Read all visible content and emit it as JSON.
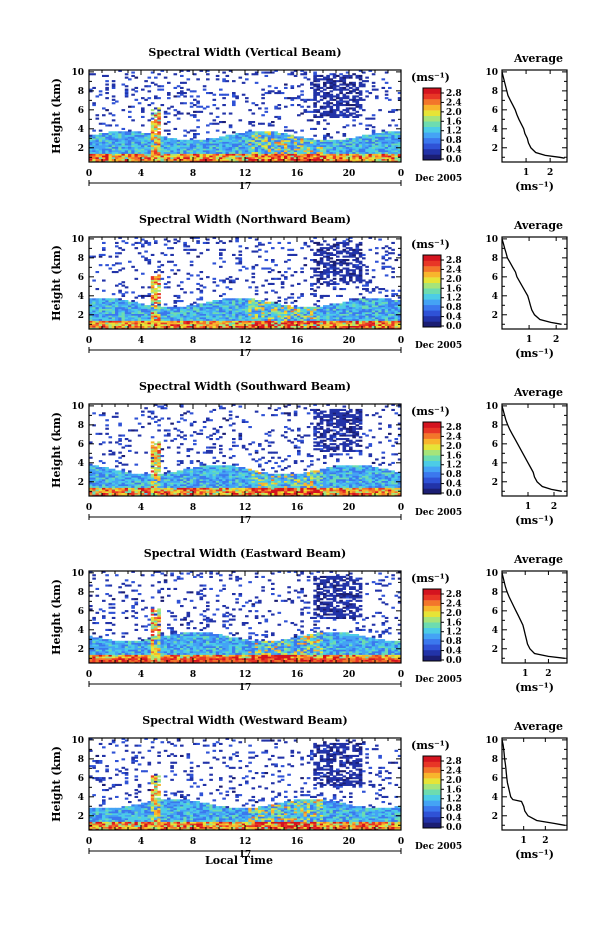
{
  "colors": {
    "colorbar": [
      "#1b1e73",
      "#2233a8",
      "#2f52d6",
      "#3b78ee",
      "#44a3f5",
      "#4ccce6",
      "#6ddcb0",
      "#a6e47a",
      "#e6e437",
      "#f8b52c",
      "#f3762a",
      "#e83626",
      "#d4141f"
    ],
    "background": "#ffffff",
    "axis": "#000000"
  },
  "xlabel": "Local Time",
  "chart_data": [
    {
      "type": "heatmap",
      "title": "Spectral Width (Vertical Beam)",
      "ylabel": "Height (km)",
      "xticks": [
        "0",
        "4",
        "8",
        "12",
        "16",
        "20",
        "0"
      ],
      "day_label": "17",
      "date_label": "Dec 2005",
      "yticks": [
        "2",
        "4",
        "6",
        "8",
        "10"
      ],
      "xlim": [
        0,
        24
      ],
      "ylim": [
        0.5,
        10.2
      ],
      "colorbar": {
        "unit": "(ms⁻¹)",
        "ticks": [
          "0.0",
          "0.4",
          "0.8",
          "1.2",
          "1.6",
          "2.0",
          "2.4",
          "2.8"
        ]
      },
      "avg_profile": {
        "title": "Average",
        "xlabel": "(ms⁻¹)",
        "xticks": [
          "1",
          "2"
        ],
        "xlim": [
          0,
          2.7
        ],
        "yticks": [
          "2",
          "4",
          "6",
          "8",
          "10"
        ],
        "ylim": [
          0.5,
          10.2
        ],
        "points": [
          [
            0.0,
            10.0
          ],
          [
            0.05,
            9.5
          ],
          [
            0.1,
            9.0
          ],
          [
            0.15,
            8.5
          ],
          [
            0.2,
            8.0
          ],
          [
            0.25,
            7.5
          ],
          [
            0.35,
            7.0
          ],
          [
            0.45,
            6.5
          ],
          [
            0.55,
            6.0
          ],
          [
            0.62,
            5.5
          ],
          [
            0.7,
            5.0
          ],
          [
            0.8,
            4.5
          ],
          [
            0.9,
            4.0
          ],
          [
            0.95,
            3.5
          ],
          [
            1.05,
            3.0
          ],
          [
            1.1,
            2.5
          ],
          [
            1.2,
            2.0
          ],
          [
            1.4,
            1.5
          ],
          [
            1.8,
            1.2
          ],
          [
            2.4,
            1.0
          ],
          [
            2.6,
            0.9
          ]
        ]
      }
    },
    {
      "type": "heatmap",
      "title": "Spectral Width (Northward Beam)",
      "ylabel": "Height (km)",
      "xticks": [
        "0",
        "4",
        "8",
        "12",
        "16",
        "20",
        "0"
      ],
      "day_label": "17",
      "date_label": "Dec 2005",
      "yticks": [
        "2",
        "4",
        "6",
        "8",
        "10"
      ],
      "xlim": [
        0,
        24
      ],
      "ylim": [
        0.5,
        10.2
      ],
      "colorbar": {
        "unit": "(ms⁻¹)",
        "ticks": [
          "0.0",
          "0.4",
          "0.8",
          "1.2",
          "1.6",
          "2.0",
          "2.4",
          "2.8"
        ]
      },
      "avg_profile": {
        "title": "Average",
        "xlabel": "(ms⁻¹)",
        "xticks": [
          "1",
          "2"
        ],
        "xlim": [
          0,
          2.4
        ],
        "yticks": [
          "2",
          "4",
          "6",
          "8",
          "10"
        ],
        "ylim": [
          0.5,
          10.2
        ],
        "points": [
          [
            0.0,
            10.0
          ],
          [
            0.05,
            9.5
          ],
          [
            0.1,
            9.0
          ],
          [
            0.15,
            8.5
          ],
          [
            0.2,
            8.0
          ],
          [
            0.3,
            7.5
          ],
          [
            0.4,
            7.0
          ],
          [
            0.5,
            6.5
          ],
          [
            0.55,
            6.0
          ],
          [
            0.65,
            5.5
          ],
          [
            0.75,
            5.0
          ],
          [
            0.85,
            4.5
          ],
          [
            0.95,
            4.0
          ],
          [
            1.0,
            3.5
          ],
          [
            1.05,
            3.0
          ],
          [
            1.1,
            2.5
          ],
          [
            1.2,
            2.0
          ],
          [
            1.4,
            1.5
          ],
          [
            1.8,
            1.2
          ],
          [
            2.2,
            1.0
          ]
        ]
      }
    },
    {
      "type": "heatmap",
      "title": "Spectral Width (Southward Beam)",
      "ylabel": "Height (km)",
      "xticks": [
        "0",
        "4",
        "8",
        "12",
        "16",
        "20",
        "0"
      ],
      "day_label": "17",
      "date_label": "Dec 2005",
      "yticks": [
        "2",
        "4",
        "6",
        "8",
        "10"
      ],
      "xlim": [
        0,
        24
      ],
      "ylim": [
        0.5,
        10.2
      ],
      "colorbar": {
        "unit": "(ms⁻¹)",
        "ticks": [
          "0.0",
          "0.4",
          "0.8",
          "1.2",
          "1.6",
          "2.0",
          "2.4",
          "2.8"
        ]
      },
      "avg_profile": {
        "title": "Average",
        "xlabel": "(ms⁻¹)",
        "xticks": [
          "1",
          "2"
        ],
        "xlim": [
          0,
          2.5
        ],
        "yticks": [
          "2",
          "4",
          "6",
          "8",
          "10"
        ],
        "ylim": [
          0.5,
          10.2
        ],
        "points": [
          [
            0.0,
            10.0
          ],
          [
            0.05,
            9.5
          ],
          [
            0.1,
            9.0
          ],
          [
            0.15,
            8.5
          ],
          [
            0.22,
            8.0
          ],
          [
            0.3,
            7.5
          ],
          [
            0.4,
            7.0
          ],
          [
            0.5,
            6.5
          ],
          [
            0.6,
            6.0
          ],
          [
            0.7,
            5.5
          ],
          [
            0.8,
            5.0
          ],
          [
            0.9,
            4.5
          ],
          [
            1.0,
            4.0
          ],
          [
            1.1,
            3.5
          ],
          [
            1.2,
            3.0
          ],
          [
            1.25,
            2.5
          ],
          [
            1.35,
            2.0
          ],
          [
            1.55,
            1.5
          ],
          [
            1.9,
            1.2
          ],
          [
            2.3,
            1.0
          ]
        ]
      }
    },
    {
      "type": "heatmap",
      "title": "Spectral Width (Eastward Beam)",
      "ylabel": "Height (km)",
      "xticks": [
        "0",
        "4",
        "8",
        "12",
        "16",
        "20",
        "0"
      ],
      "day_label": "17",
      "date_label": "Dec 2005",
      "yticks": [
        "2",
        "4",
        "6",
        "8",
        "10"
      ],
      "xlim": [
        0,
        24
      ],
      "ylim": [
        0.5,
        10.2
      ],
      "colorbar": {
        "unit": "(ms⁻¹)",
        "ticks": [
          "0.0",
          "0.4",
          "0.8",
          "1.2",
          "1.6",
          "2.0",
          "2.4",
          "2.8"
        ]
      },
      "avg_profile": {
        "title": "Average",
        "xlabel": "(ms⁻¹)",
        "xticks": [
          "1",
          "2"
        ],
        "xlim": [
          0,
          2.8
        ],
        "yticks": [
          "2",
          "4",
          "6",
          "8",
          "10"
        ],
        "ylim": [
          0.5,
          10.2
        ],
        "points": [
          [
            0.0,
            10.0
          ],
          [
            0.05,
            9.5
          ],
          [
            0.1,
            9.0
          ],
          [
            0.15,
            8.5
          ],
          [
            0.22,
            8.0
          ],
          [
            0.3,
            7.5
          ],
          [
            0.4,
            7.0
          ],
          [
            0.5,
            6.5
          ],
          [
            0.6,
            6.0
          ],
          [
            0.7,
            5.5
          ],
          [
            0.8,
            5.0
          ],
          [
            0.9,
            4.5
          ],
          [
            0.95,
            4.0
          ],
          [
            1.0,
            3.5
          ],
          [
            1.05,
            3.0
          ],
          [
            1.1,
            2.5
          ],
          [
            1.2,
            2.0
          ],
          [
            1.4,
            1.5
          ],
          [
            2.0,
            1.2
          ],
          [
            2.7,
            1.0
          ]
        ]
      }
    },
    {
      "type": "heatmap",
      "title": "Spectral Width (Westward Beam)",
      "ylabel": "Height (km)",
      "xticks": [
        "0",
        "4",
        "8",
        "12",
        "16",
        "20",
        "0"
      ],
      "day_label": "17",
      "date_label": "Dec 2005",
      "yticks": [
        "2",
        "4",
        "6",
        "8",
        "10"
      ],
      "xlim": [
        0,
        24
      ],
      "ylim": [
        0.5,
        10.2
      ],
      "colorbar": {
        "unit": "(ms⁻¹)",
        "ticks": [
          "0.0",
          "0.4",
          "0.8",
          "1.2",
          "1.6",
          "2.0",
          "2.4",
          "2.8"
        ]
      },
      "avg_profile": {
        "title": "Average",
        "xlabel": "(ms⁻¹)",
        "xticks": [
          "1",
          "2"
        ],
        "xlim": [
          0,
          3.0
        ],
        "yticks": [
          "2",
          "4",
          "6",
          "8",
          "10"
        ],
        "ylim": [
          0.5,
          10.2
        ],
        "points": [
          [
            0.0,
            10.0
          ],
          [
            0.05,
            9.5
          ],
          [
            0.08,
            9.0
          ],
          [
            0.1,
            8.5
          ],
          [
            0.12,
            8.0
          ],
          [
            0.15,
            7.5
          ],
          [
            0.18,
            7.0
          ],
          [
            0.2,
            6.5
          ],
          [
            0.22,
            6.0
          ],
          [
            0.25,
            5.5
          ],
          [
            0.3,
            5.0
          ],
          [
            0.35,
            4.5
          ],
          [
            0.4,
            4.0
          ],
          [
            0.5,
            3.7
          ],
          [
            0.9,
            3.5
          ],
          [
            1.0,
            3.0
          ],
          [
            1.05,
            2.5
          ],
          [
            1.2,
            2.0
          ],
          [
            1.6,
            1.5
          ],
          [
            2.4,
            1.2
          ],
          [
            2.9,
            1.0
          ]
        ]
      }
    }
  ]
}
